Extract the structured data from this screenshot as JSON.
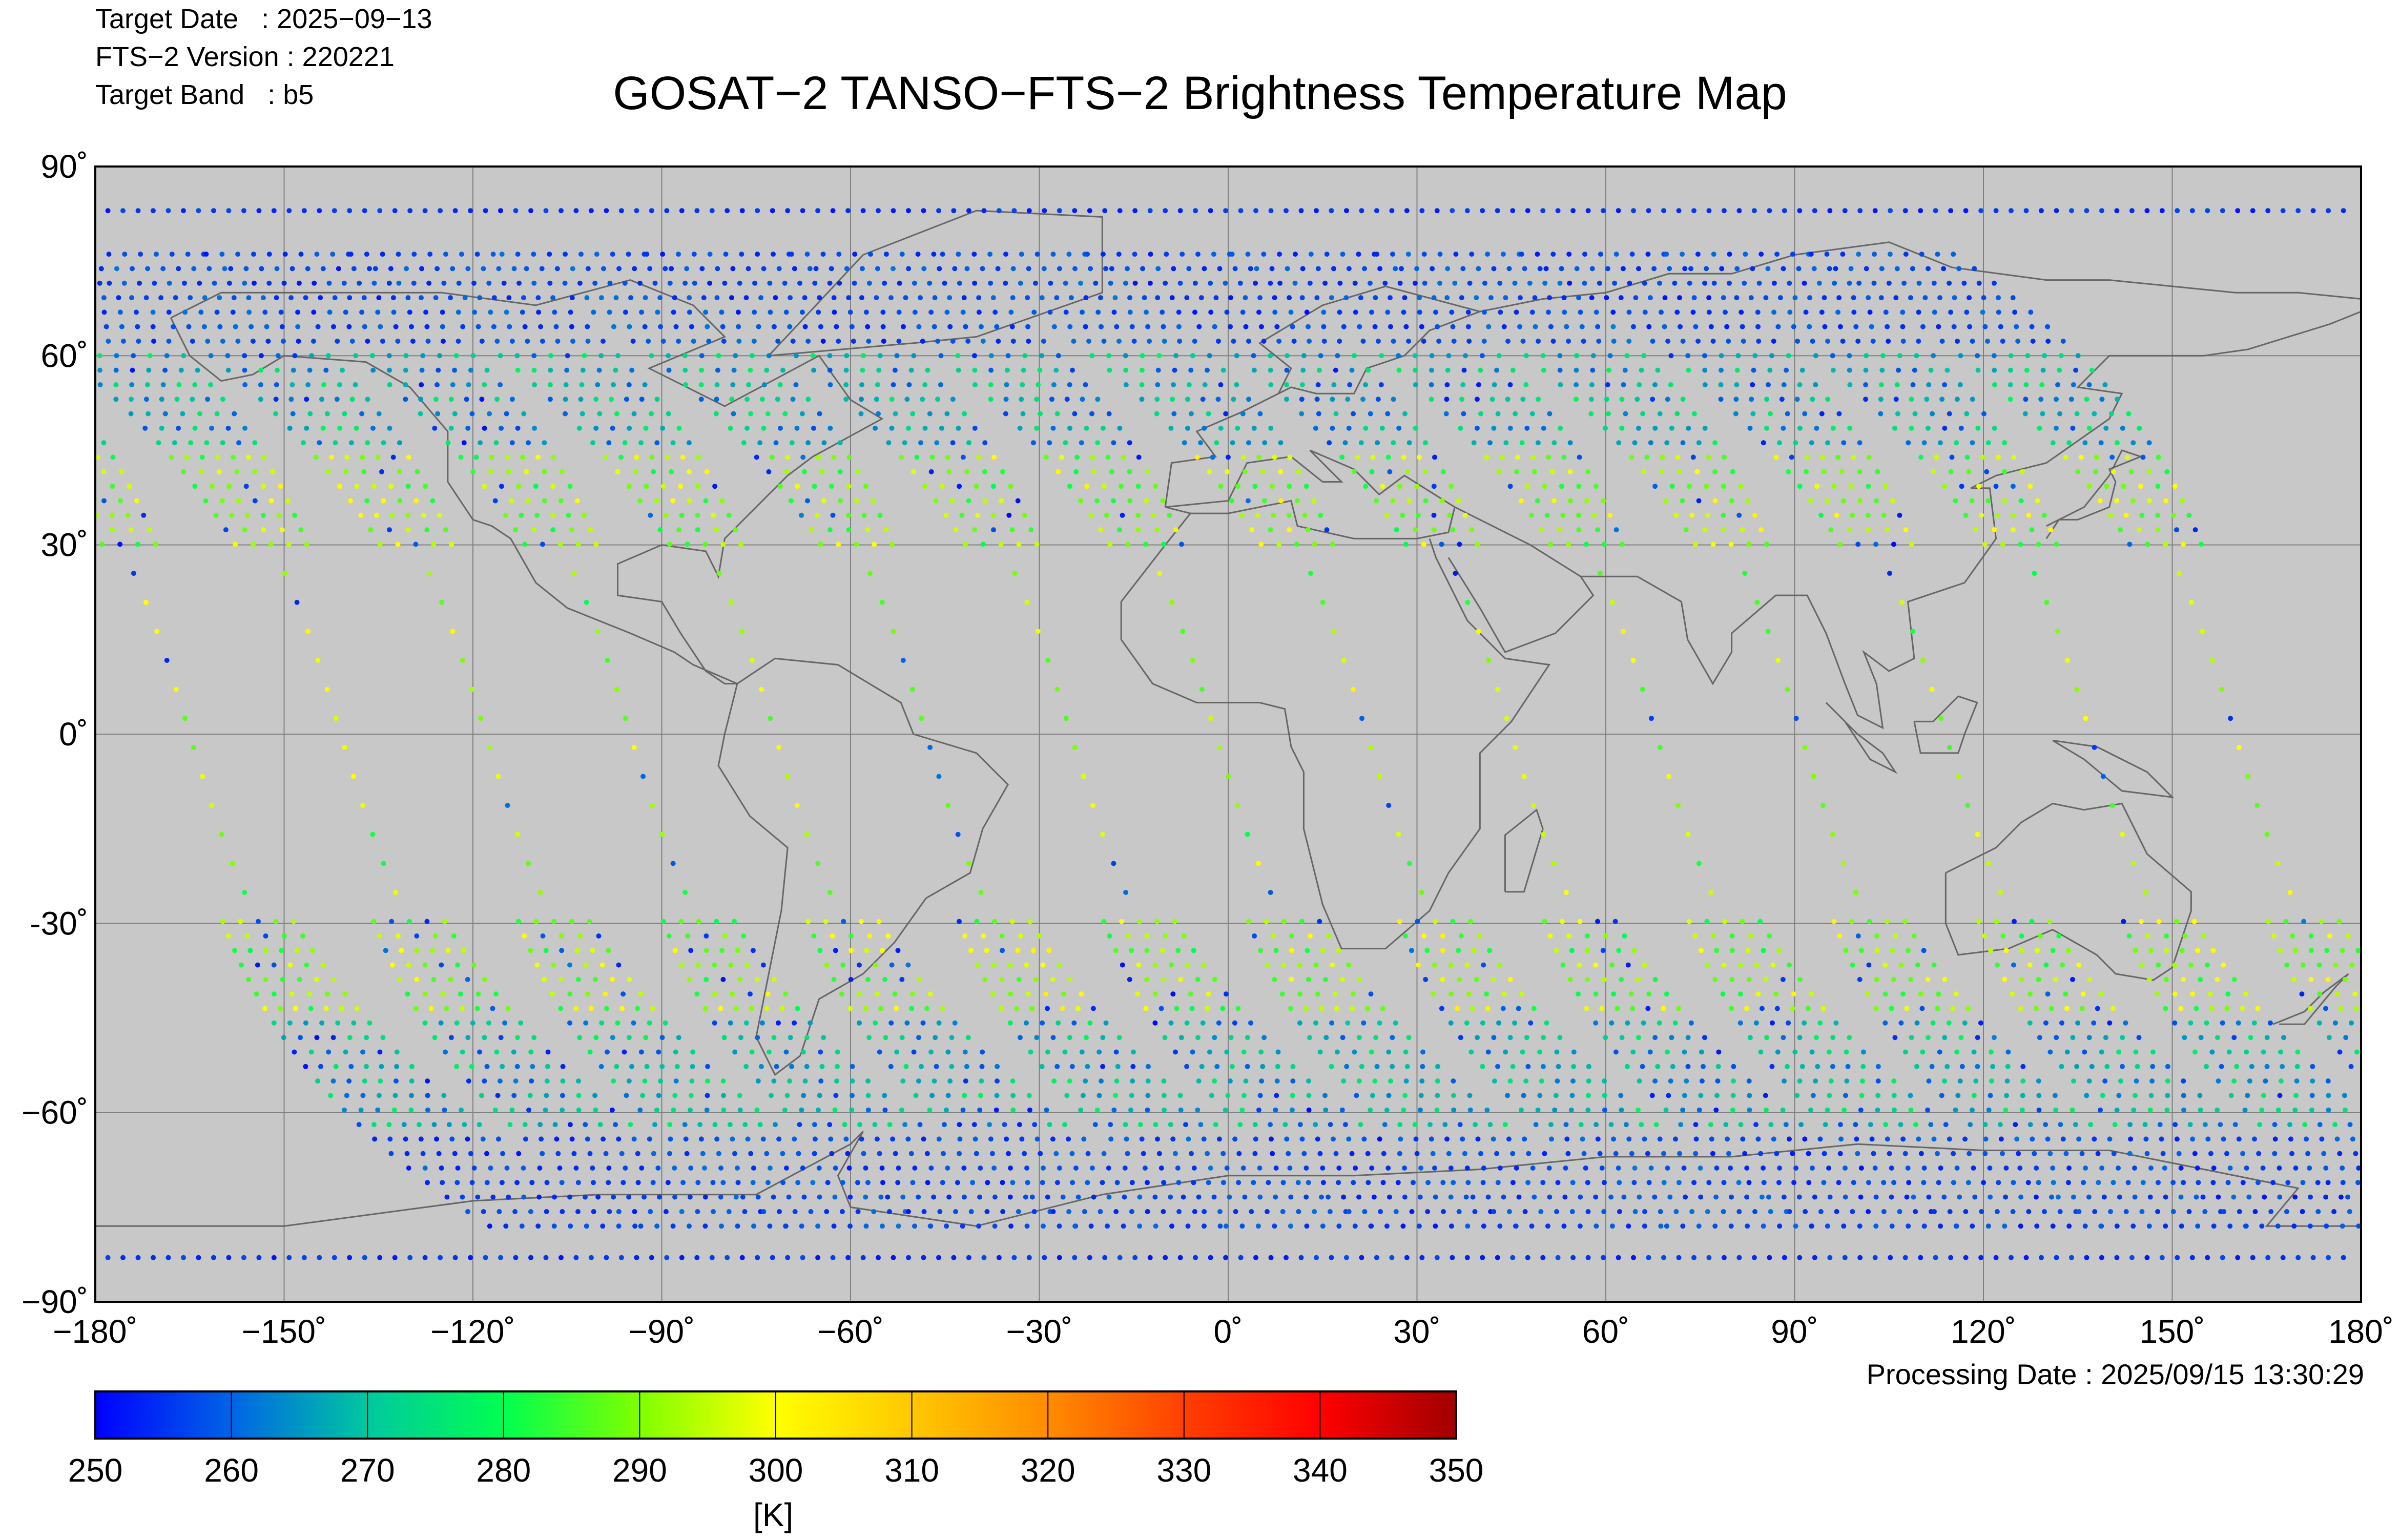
{
  "header": {
    "target_date": "Target Date   : 2025−09−13",
    "fts_version": "FTS−2 Version : 220221",
    "target_band": "Target Band   : b5"
  },
  "title": "GOSAT−2 TANSO−FTS−2 Brightness Temperature Map",
  "map": {
    "background_color": "#c8c8c8",
    "lon_ticks": [
      "−180˚",
      "−150˚",
      "−120˚",
      "−90˚",
      "−60˚",
      "−30˚",
      "0˚",
      "30˚",
      "60˚",
      "90˚",
      "120˚",
      "150˚",
      "180˚"
    ],
    "lat_ticks": [
      "90˚",
      "60˚",
      "30˚",
      "0˚",
      "-30˚",
      "−60˚",
      "−90˚"
    ],
    "lon_range": [
      -180,
      180
    ],
    "lat_range": [
      -90,
      90
    ],
    "grid": true
  },
  "processing_date": "Processing Date : 2025/09/15 13:30:29",
  "colorbar": {
    "min": 250,
    "max": 350,
    "tick_labels": [
      "250",
      "260",
      "270",
      "280",
      "290",
      "300",
      "310",
      "320",
      "330",
      "340",
      "350"
    ],
    "unit": "[K]",
    "colors": [
      "#0000ff",
      "#0064e6",
      "#00c8a0",
      "#00ff50",
      "#80ff00",
      "#ffff00",
      "#ffc800",
      "#ff8c00",
      "#ff4000",
      "#ff0000",
      "#a00000"
    ]
  },
  "chart_data": {
    "type": "scatter",
    "title": "GOSAT−2 TANSO−FTS−2 Brightness Temperature Map",
    "xlabel": "",
    "ylabel": "",
    "xlim": [
      -180,
      180
    ],
    "ylim": [
      -90,
      90
    ],
    "colorbar_unit": "[K]",
    "colorbar_range": [
      250,
      350
    ],
    "swath_equator_crossings_lon": [
      -165,
      -141,
      -118,
      -95,
      -72,
      -48,
      -25,
      -2,
      22,
      45,
      68,
      91,
      114,
      137,
      160
    ],
    "polar_rows_lat": [
      83,
      -83
    ]
  }
}
